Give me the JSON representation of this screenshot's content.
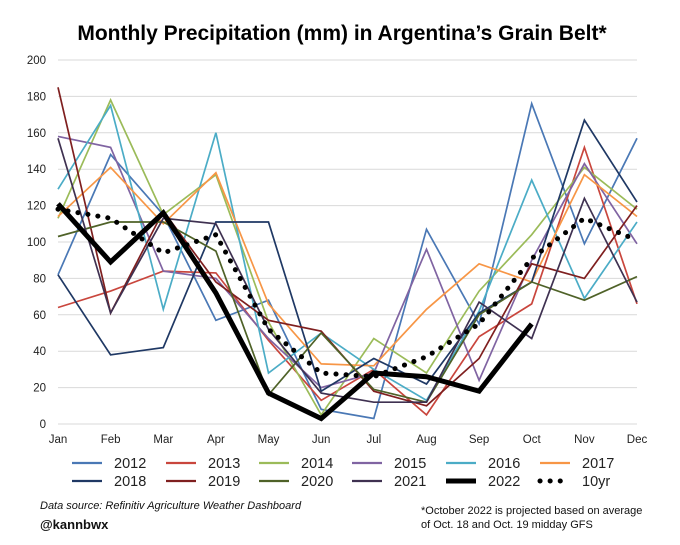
{
  "chart_data": {
    "type": "line",
    "title": "Monthly Precipitation (mm) in Argentina’s Grain Belt*",
    "xlabel": "",
    "ylabel": "",
    "categories": [
      "Jan",
      "Feb",
      "Mar",
      "Apr",
      "May",
      "Jun",
      "Jul",
      "Aug",
      "Sep",
      "Oct",
      "Nov",
      "Dec"
    ],
    "ylim": [
      0,
      200
    ],
    "yticks": [
      "0",
      "20",
      "40",
      "60",
      "80",
      "100",
      "120",
      "140",
      "160",
      "180",
      "200"
    ],
    "grid": true,
    "legend_position": "bottom",
    "series": [
      {
        "name": "2012",
        "color": "#4a78b5",
        "values": [
          82,
          148,
          115,
          57,
          68,
          8,
          3,
          107,
          55,
          176,
          99,
          157
        ]
      },
      {
        "name": "2013",
        "color": "#c9463d",
        "values": [
          64,
          73,
          84,
          83,
          46,
          13,
          30,
          5,
          48,
          66,
          152,
          66
        ]
      },
      {
        "name": "2014",
        "color": "#9bbb59",
        "values": [
          113,
          178,
          115,
          137,
          56,
          5,
          47,
          28,
          73,
          104,
          141,
          118
        ]
      },
      {
        "name": "2015",
        "color": "#8064a2",
        "values": [
          158,
          152,
          84,
          80,
          47,
          20,
          28,
          96,
          24,
          90,
          143,
          99
        ]
      },
      {
        "name": "2016",
        "color": "#4bacc6",
        "values": [
          129,
          175,
          63,
          160,
          28,
          50,
          30,
          13,
          62,
          134,
          69,
          111
        ]
      },
      {
        "name": "2017",
        "color": "#f79646",
        "values": [
          114,
          141,
          110,
          138,
          66,
          33,
          32,
          63,
          88,
          78,
          137,
          114
        ]
      },
      {
        "name": "2018",
        "color": "#1f3864",
        "values": [
          82,
          38,
          42,
          111,
          111,
          18,
          36,
          22,
          61,
          78,
          167,
          122
        ]
      },
      {
        "name": "2019",
        "color": "#7f1f1f",
        "values": [
          185,
          61,
          117,
          78,
          57,
          51,
          18,
          10,
          36,
          88,
          80,
          120
        ]
      },
      {
        "name": "2020",
        "color": "#4f6228",
        "values": [
          103,
          111,
          111,
          95,
          16,
          50,
          19,
          12,
          60,
          78,
          68,
          81
        ]
      },
      {
        "name": "2021",
        "color": "#3f3151",
        "values": [
          157,
          61,
          113,
          110,
          52,
          17,
          12,
          12,
          67,
          47,
          124,
          67
        ]
      },
      {
        "name": "2022",
        "color": "#000000",
        "values": [
          121,
          89,
          116,
          72,
          17,
          3,
          28,
          26,
          18,
          55,
          null,
          null
        ]
      },
      {
        "name": "10yr",
        "color": "#000000",
        "values": [
          118,
          113,
          94,
          104,
          52,
          28,
          26,
          37,
          55,
          91,
          113,
          101
        ]
      }
    ]
  },
  "labels": {
    "source": "Data source: Refinitiv Agriculture Weather Dashboard",
    "handle": "@kannbwx",
    "note_line1": "*October 2022 is projected based on average",
    "note_line2": "of Oct. 18 and Oct. 19 midday GFS"
  }
}
